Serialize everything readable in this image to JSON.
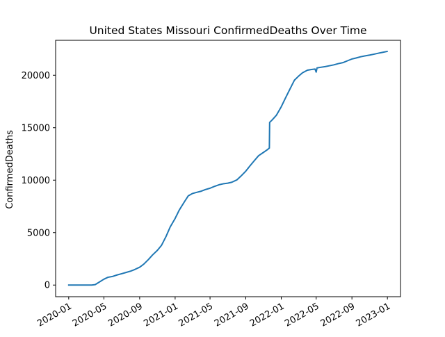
{
  "chart_data": {
    "type": "line",
    "title": "United States Missouri ConfirmedDeaths Over Time",
    "xlabel": "",
    "ylabel": "ConfirmedDeaths",
    "ylim": [
      -1110,
      23330
    ],
    "xlim": [
      "2019-11-17",
      "2023-02-15"
    ],
    "yticks": [
      0,
      5000,
      10000,
      15000,
      20000
    ],
    "xticks": [
      "2020-01",
      "2020-05",
      "2020-09",
      "2021-01",
      "2021-05",
      "2021-09",
      "2022-01",
      "2022-05",
      "2022-09",
      "2023-01"
    ],
    "grid": false,
    "line_color": "#1f77b4",
    "series": [
      {
        "x": [
          "2020-01-01",
          "2020-02-01",
          "2020-03-01",
          "2020-03-20",
          "2020-04-01",
          "2020-04-15",
          "2020-05-01",
          "2020-05-15",
          "2020-06-01",
          "2020-06-15",
          "2020-07-01",
          "2020-07-15",
          "2020-08-01",
          "2020-08-15",
          "2020-09-01",
          "2020-09-15",
          "2020-10-01",
          "2020-10-15",
          "2020-11-01",
          "2020-11-15",
          "2020-12-01",
          "2020-12-15",
          "2021-01-01",
          "2021-01-15",
          "2021-02-01",
          "2021-02-15",
          "2021-03-01",
          "2021-03-15",
          "2021-04-01",
          "2021-04-15",
          "2021-05-01",
          "2021-05-15",
          "2021-06-01",
          "2021-06-15",
          "2021-07-01",
          "2021-07-15",
          "2021-08-01",
          "2021-08-15",
          "2021-09-01",
          "2021-09-15",
          "2021-10-01",
          "2021-10-15",
          "2021-11-01",
          "2021-11-15",
          "2021-11-21",
          "2021-11-22",
          "2021-12-01",
          "2021-12-15",
          "2022-01-01",
          "2022-01-15",
          "2022-02-01",
          "2022-02-15",
          "2022-03-01",
          "2022-03-15",
          "2022-04-01",
          "2022-04-15",
          "2022-04-27",
          "2022-05-01",
          "2022-05-04",
          "2022-05-15",
          "2022-06-01",
          "2022-06-15",
          "2022-07-01",
          "2022-07-15",
          "2022-08-01",
          "2022-08-15",
          "2022-09-01",
          "2022-09-15",
          "2022-10-01",
          "2022-10-15",
          "2022-11-01",
          "2022-11-15",
          "2022-12-01",
          "2022-12-15",
          "2022-12-31"
        ],
        "y": [
          0,
          0,
          0,
          0,
          40,
          280,
          560,
          740,
          830,
          960,
          1080,
          1190,
          1330,
          1480,
          1700,
          1990,
          2430,
          2860,
          3310,
          3780,
          4650,
          5540,
          6350,
          7140,
          7900,
          8500,
          8720,
          8830,
          8950,
          9100,
          9230,
          9390,
          9560,
          9650,
          9710,
          9800,
          10020,
          10380,
          10860,
          11350,
          11880,
          12330,
          12650,
          12920,
          13060,
          15500,
          15750,
          16180,
          17000,
          17800,
          18750,
          19520,
          19900,
          20230,
          20480,
          20550,
          20590,
          20300,
          20700,
          20750,
          20820,
          20900,
          20990,
          21100,
          21200,
          21360,
          21550,
          21640,
          21760,
          21840,
          21920,
          22000,
          22100,
          22180,
          22270
        ]
      }
    ]
  }
}
